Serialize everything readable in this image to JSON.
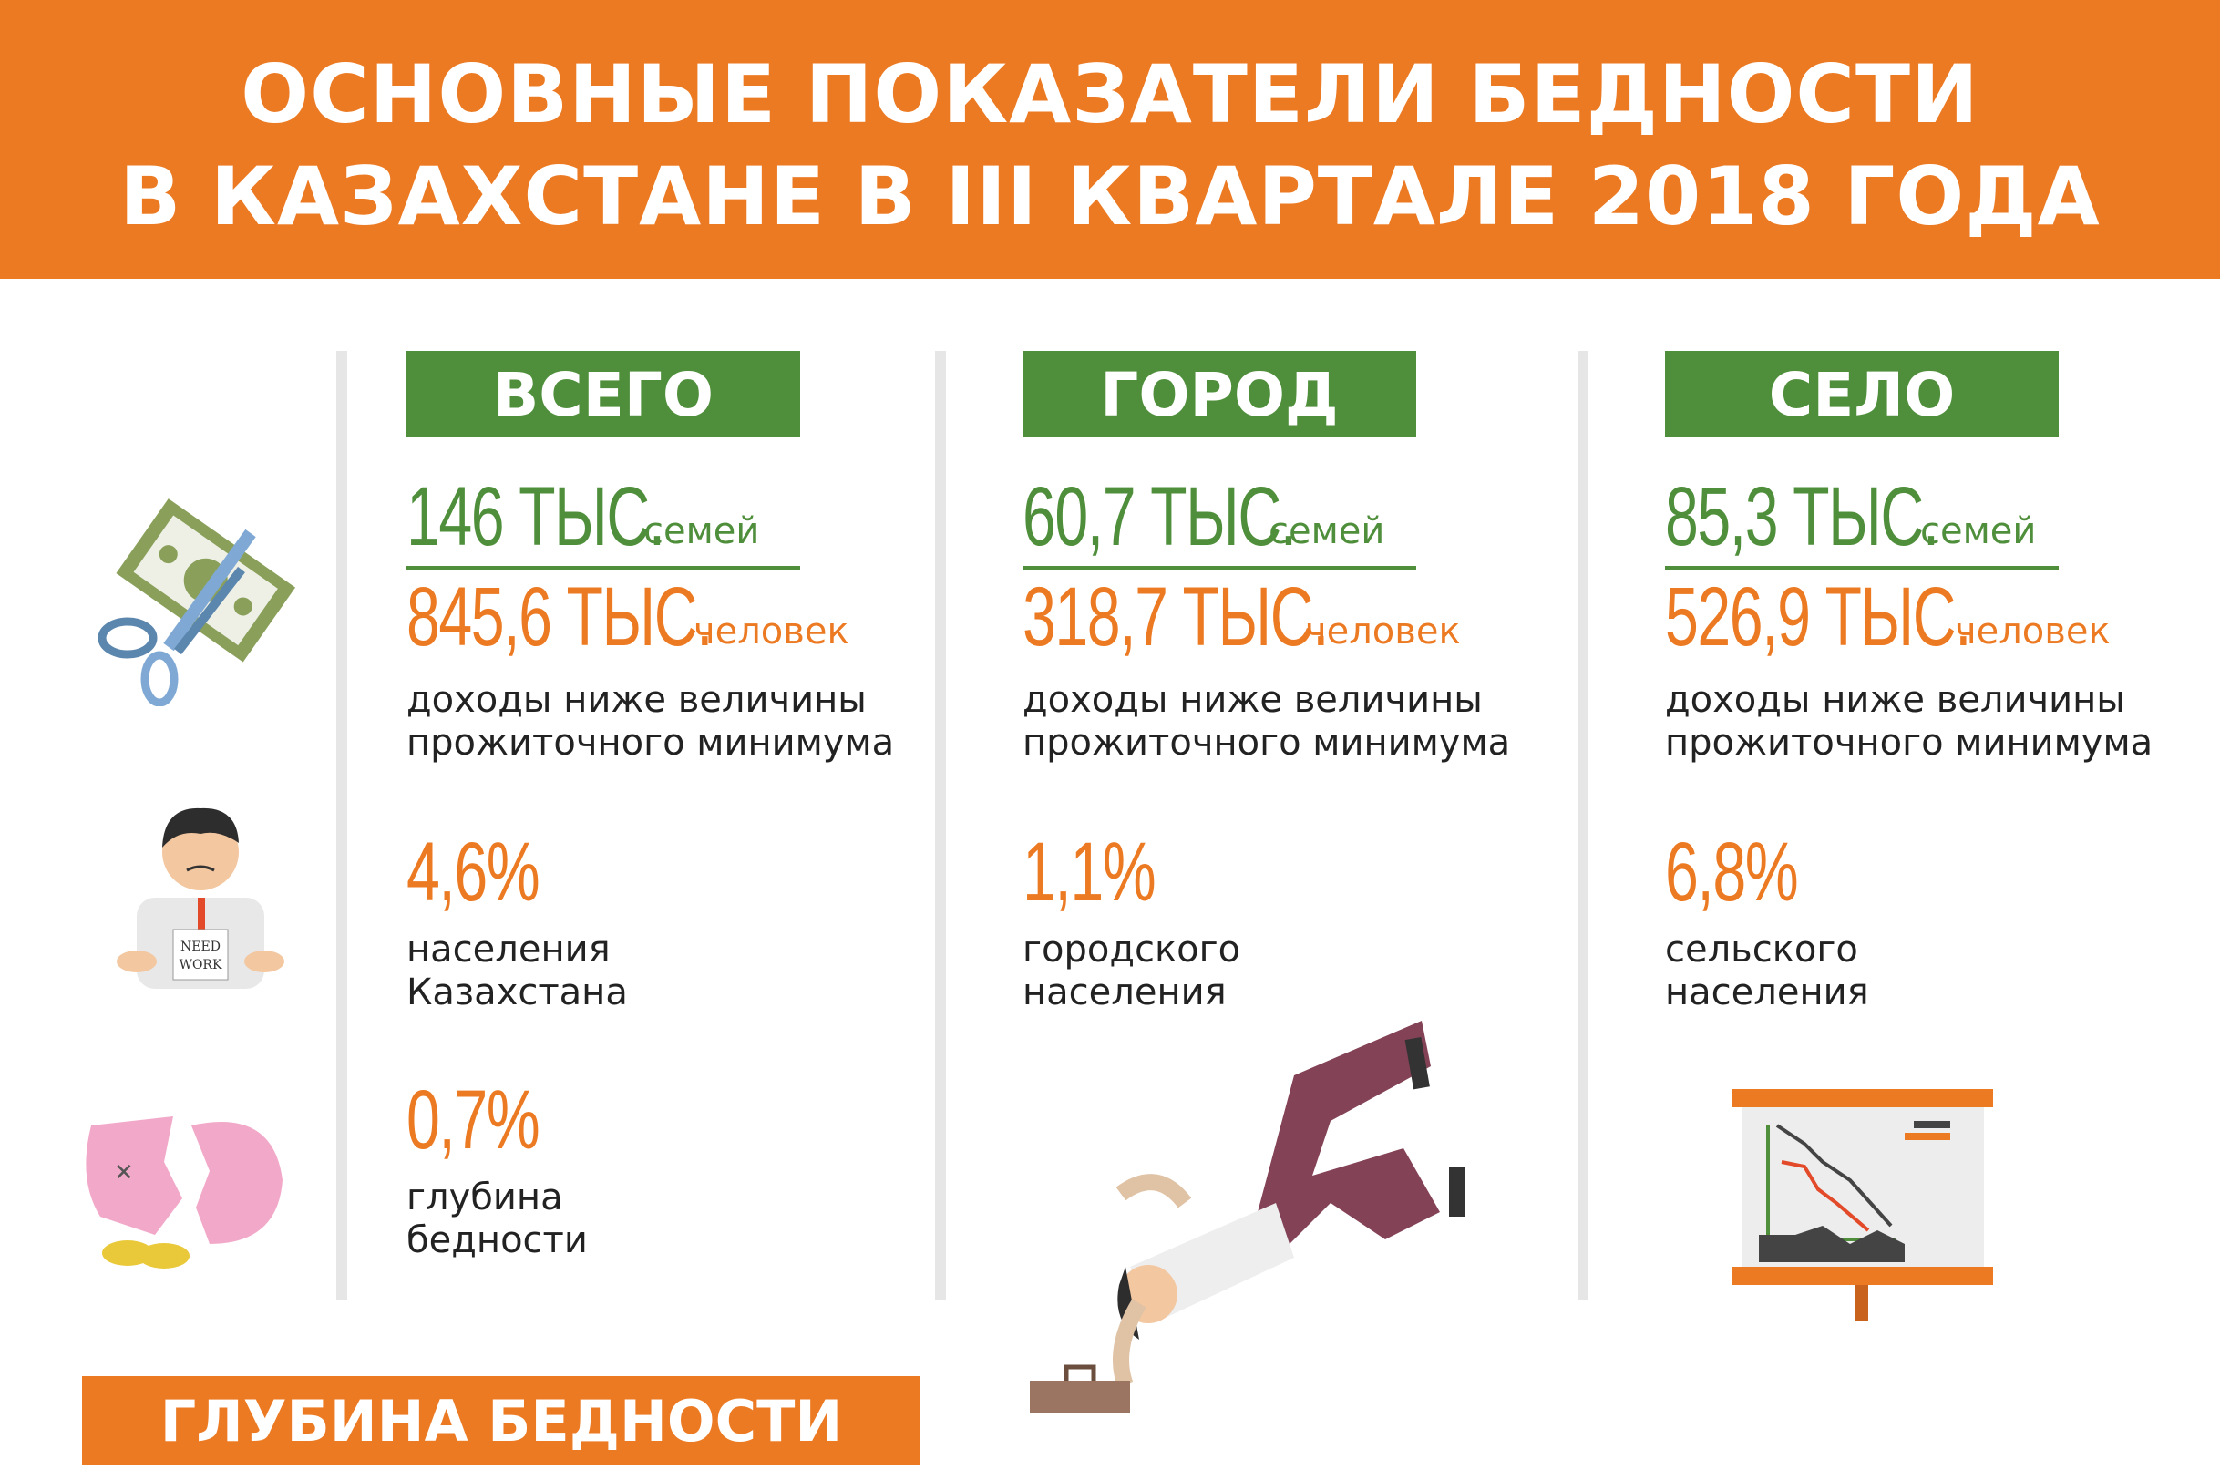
{
  "header": {
    "title_line1": "ОСНОВНЫЕ ПОКАЗАТЕЛИ БЕДНОСТИ",
    "title_line2": "В КАЗАХСТАНЕ В III КВАРТАЛЕ 2018 ГОДА"
  },
  "colors": {
    "orange": "#ec7a23",
    "green": "#4f8f3b",
    "text": "#222222"
  },
  "columns": [
    {
      "label": "ВСЕГО",
      "families": "146 ТЫС.",
      "families_unit": "семей",
      "people": "845,6 ТЫС.",
      "people_unit": "человек",
      "income_line1": "доходы ниже величины",
      "income_line2": "прожиточного минимума",
      "share": "4,6%",
      "share_line1": "населения",
      "share_line2": "Казахстана",
      "depth": "0,7%",
      "depth_line1": "глубина",
      "depth_line2": "бедности"
    },
    {
      "label": "ГОРОД",
      "families": "60,7 ТЫС.",
      "families_unit": "семей",
      "people": "318,7 ТЫС.",
      "people_unit": "человек",
      "income_line1": "доходы ниже величины",
      "income_line2": "прожиточного минимума",
      "share": "1,1%",
      "share_line1": "городского",
      "share_line2": "населения"
    },
    {
      "label": "СЕЛО",
      "families": "85,3 ТЫС.",
      "families_unit": "семей",
      "people": "526,9 ТЫС.",
      "people_unit": "человек",
      "income_line1": "доходы ниже величины",
      "income_line2": "прожиточного минимума",
      "share": "6,8%",
      "share_line1": "сельского",
      "share_line2": "населения"
    }
  ],
  "footer": {
    "label": "ГЛУБИНА БЕДНОСТИ"
  },
  "icons": [
    "scissors-money-icon",
    "need-work-man-icon",
    "broken-piggy-bank-icon",
    "falling-man-icon",
    "declining-chart-board-icon"
  ],
  "need_work_sign": "NEED WORK"
}
